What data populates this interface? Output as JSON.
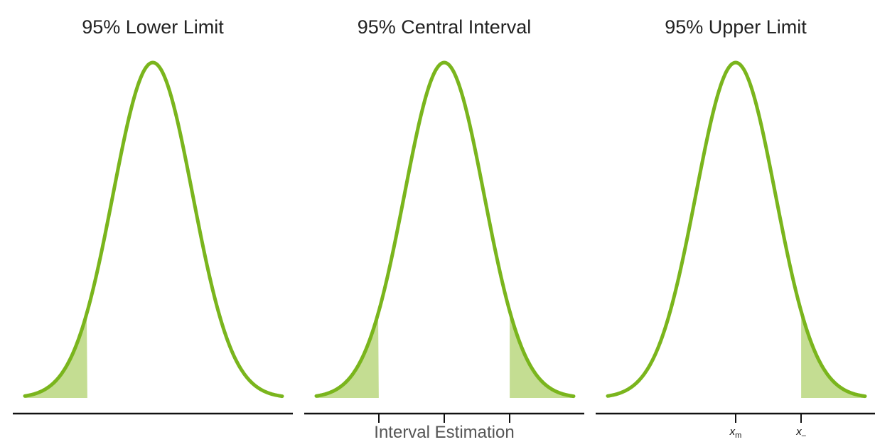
{
  "diagram": {
    "caption": "Interval Estimation",
    "colors": {
      "curve": "#7ab51d",
      "fill": "#c4dd92",
      "axis": "#111111"
    },
    "panels": [
      {
        "title": "95% Lower Limit",
        "shaded_tails": [
          "left"
        ],
        "tick_marks": [],
        "tick_labels": []
      },
      {
        "title": "95% Central Interval",
        "shaded_tails": [
          "left",
          "right"
        ],
        "tick_marks": [
          "lower",
          "center",
          "upper"
        ],
        "tick_labels": []
      },
      {
        "title": "95% Upper Limit",
        "shaded_tails": [
          "right"
        ],
        "tick_marks": [
          "center",
          "upper"
        ],
        "tick_labels": [
          {
            "at": "center",
            "main": "x",
            "sub": "m"
          },
          {
            "at": "upper",
            "main": "x",
            "sub": "–"
          }
        ]
      }
    ]
  }
}
